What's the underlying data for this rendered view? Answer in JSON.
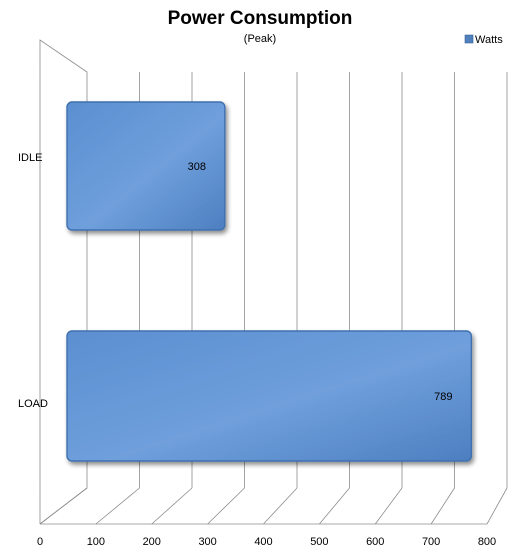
{
  "chart_data": {
    "type": "bar",
    "orientation": "horizontal",
    "title": "Power Consumption",
    "subtitle": "(Peak)",
    "categories": [
      "IDLE",
      "LOAD"
    ],
    "series": [
      {
        "name": "Watts",
        "values": [
          308,
          789
        ],
        "color": "#4f81bd"
      }
    ],
    "xlim": [
      0,
      800
    ],
    "x_ticks": [
      0,
      100,
      200,
      300,
      400,
      500,
      600,
      700,
      800
    ],
    "grid": true,
    "legend_position": "top-right",
    "style": "3d"
  }
}
